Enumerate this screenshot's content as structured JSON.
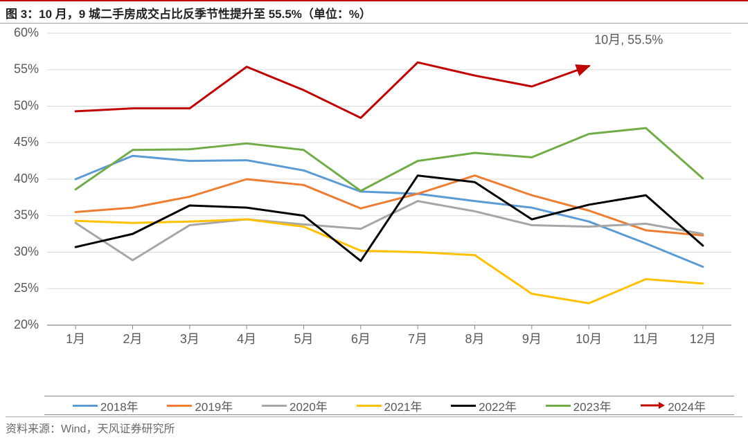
{
  "title": "图 3：10 月，9 城二手房成交占比反季节性提升至 55.5%（单位：%）",
  "source": "资料来源：Wind，天风证券研究所",
  "chart": {
    "type": "line",
    "background_color": "#ffffff",
    "grid_color": "#d9d9d9",
    "axis_color": "#888888",
    "tick_label_color": "#595959",
    "title_fontsize": 17,
    "label_fontsize": 18,
    "legend_fontsize": 17,
    "x_categories": [
      "1月",
      "2月",
      "3月",
      "4月",
      "5月",
      "6月",
      "7月",
      "8月",
      "9月",
      "10月",
      "11月",
      "12月"
    ],
    "ylim": [
      20,
      60
    ],
    "ytick_step": 5,
    "y_suffix": "%",
    "line_width": 3,
    "series": [
      {
        "name": "2018年",
        "color": "#5b9bd5",
        "values": [
          40.0,
          43.2,
          42.5,
          42.6,
          41.2,
          38.3,
          38.0,
          37.0,
          36.1,
          34.2,
          31.2,
          28.0
        ]
      },
      {
        "name": "2019年",
        "color": "#ed7d31",
        "values": [
          35.5,
          36.1,
          37.6,
          40.0,
          39.2,
          36.0,
          38.0,
          40.5,
          37.8,
          35.7,
          33.0,
          32.3
        ]
      },
      {
        "name": "2020年",
        "color": "#a6a6a6",
        "values": [
          34.0,
          28.9,
          33.7,
          34.5,
          33.8,
          33.2,
          37.0,
          35.6,
          33.7,
          33.5,
          33.9,
          32.5
        ]
      },
      {
        "name": "2021年",
        "color": "#ffc000",
        "values": [
          34.3,
          34.0,
          34.2,
          34.5,
          33.5,
          30.2,
          30.0,
          29.6,
          24.3,
          23.0,
          26.3,
          25.7
        ]
      },
      {
        "name": "2022年",
        "color": "#000000",
        "values": [
          30.7,
          32.5,
          36.4,
          36.1,
          35.0,
          28.8,
          40.5,
          39.6,
          34.5,
          36.5,
          37.8,
          30.9
        ]
      },
      {
        "name": "2023年",
        "color": "#70ad47",
        "values": [
          38.6,
          44.0,
          44.1,
          44.9,
          44.0,
          38.4,
          42.5,
          43.6,
          43.0,
          46.2,
          47.0,
          40.1
        ]
      },
      {
        "name": "2024年",
        "color": "#c00000",
        "values": [
          49.3,
          49.7,
          49.7,
          55.4,
          52.2,
          48.4,
          56.0,
          54.2,
          52.7,
          55.5
        ],
        "arrow": true
      }
    ],
    "annotation": {
      "text": "10月, 55.5%",
      "x_index": 9,
      "y_value": 55.5,
      "offset_x": 8,
      "offset_y": -32,
      "color": "#595959"
    },
    "legend": [
      {
        "label": "2018年",
        "color": "#5b9bd5",
        "style": "line"
      },
      {
        "label": "2019年",
        "color": "#ed7d31",
        "style": "line"
      },
      {
        "label": "2020年",
        "color": "#a6a6a6",
        "style": "line"
      },
      {
        "label": "2021年",
        "color": "#ffc000",
        "style": "line"
      },
      {
        "label": "2022年",
        "color": "#000000",
        "style": "line"
      },
      {
        "label": "2023年",
        "color": "#70ad47",
        "style": "line"
      },
      {
        "label": "2024年",
        "color": "#c00000",
        "style": "arrow"
      }
    ]
  }
}
